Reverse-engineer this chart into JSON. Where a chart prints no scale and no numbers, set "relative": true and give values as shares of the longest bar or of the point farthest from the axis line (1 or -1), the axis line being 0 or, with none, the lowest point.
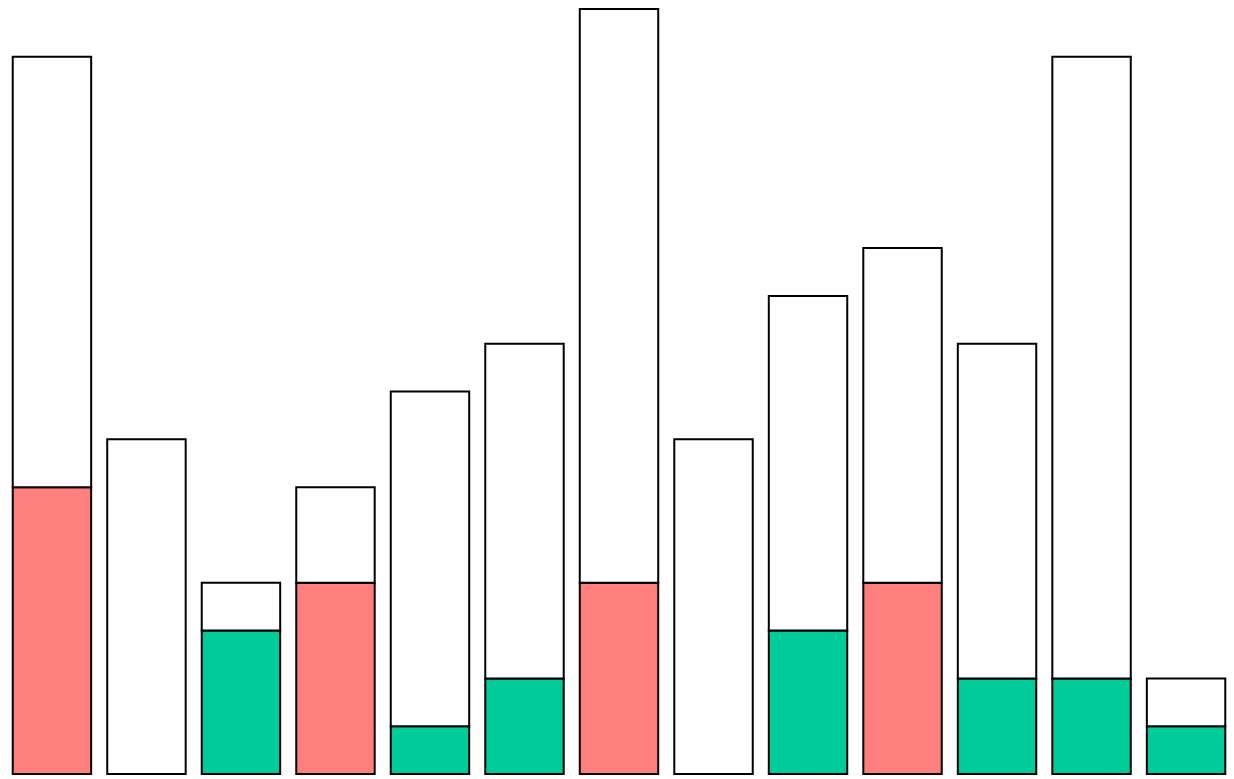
{
  "chart_data": {
    "type": "bar",
    "stacked": true,
    "relative": true,
    "legend": false,
    "categories": [
      null,
      null,
      null,
      null,
      null,
      null,
      null,
      null,
      null,
      null,
      null,
      null,
      null
    ],
    "series": [
      {
        "color": "#ff7f7f",
        "values": [
          0.375,
          null,
          null,
          0.25,
          null,
          null,
          0.25,
          null,
          null,
          0.25,
          null,
          null,
          null
        ]
      },
      {
        "color": "#00cc99",
        "values": [
          null,
          null,
          0.1875,
          null,
          0.0625,
          0.125,
          null,
          null,
          0.1875,
          null,
          0.125,
          0.125,
          0.0625
        ]
      },
      {
        "color": "#ffffff",
        "values": [
          0.5625,
          0.4375,
          0.0625,
          0.125,
          0.4375,
          0.4375,
          0.75,
          0.4375,
          0.4375,
          0.4375,
          0.4375,
          0.8125,
          0.0625
        ]
      }
    ]
  }
}
